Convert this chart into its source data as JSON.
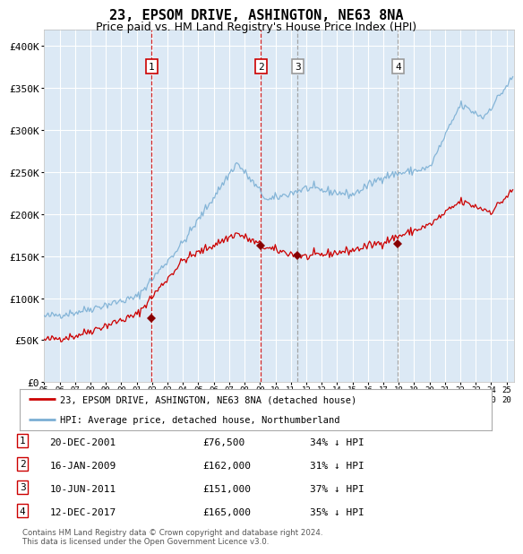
{
  "title": "23, EPSOM DRIVE, ASHINGTON, NE63 8NA",
  "subtitle": "Price paid vs. HM Land Registry's House Price Index (HPI)",
  "title_fontsize": 11,
  "subtitle_fontsize": 9,
  "background_color": "#ffffff",
  "plot_bg_color": "#dce9f5",
  "grid_color": "#ffffff",
  "sales": [
    {
      "label": "1",
      "date_num": 2001.97,
      "price": 76500,
      "line_color": "#cc0000",
      "box_color": "#cc0000"
    },
    {
      "label": "2",
      "date_num": 2009.05,
      "price": 162000,
      "line_color": "#cc0000",
      "box_color": "#cc0000"
    },
    {
      "label": "3",
      "date_num": 2011.44,
      "price": 151000,
      "line_color": "#999999",
      "box_color": "#999999"
    },
    {
      "label": "4",
      "date_num": 2017.95,
      "price": 165000,
      "line_color": "#999999",
      "box_color": "#999999"
    }
  ],
  "sale_marker_color": "#880000",
  "legend_items": [
    {
      "label": "23, EPSOM DRIVE, ASHINGTON, NE63 8NA (detached house)",
      "color": "#cc0000"
    },
    {
      "label": "HPI: Average price, detached house, Northumberland",
      "color": "#7bafd4"
    }
  ],
  "table_rows": [
    {
      "num": "1",
      "date": "20-DEC-2001",
      "price": "£76,500",
      "pct": "34% ↓ HPI"
    },
    {
      "num": "2",
      "date": "16-JAN-2009",
      "price": "£162,000",
      "pct": "31% ↓ HPI"
    },
    {
      "num": "3",
      "date": "10-JUN-2011",
      "price": "£151,000",
      "pct": "37% ↓ HPI"
    },
    {
      "num": "4",
      "date": "12-DEC-2017",
      "price": "£165,000",
      "pct": "35% ↓ HPI"
    }
  ],
  "footer": "Contains HM Land Registry data © Crown copyright and database right 2024.\nThis data is licensed under the Open Government Licence v3.0.",
  "ylim": [
    0,
    420000
  ],
  "xlim": [
    1995.0,
    2025.5
  ],
  "yticks": [
    0,
    50000,
    100000,
    150000,
    200000,
    250000,
    300000,
    350000,
    400000
  ],
  "ytick_labels": [
    "£0",
    "£50K",
    "£100K",
    "£150K",
    "£200K",
    "£250K",
    "£300K",
    "£350K",
    "£400K"
  ],
  "xtick_years": [
    1995,
    1996,
    1997,
    1998,
    1999,
    2000,
    2001,
    2002,
    2003,
    2004,
    2005,
    2006,
    2007,
    2008,
    2009,
    2010,
    2011,
    2012,
    2013,
    2014,
    2015,
    2016,
    2017,
    2018,
    2019,
    2020,
    2021,
    2022,
    2023,
    2024,
    2025
  ]
}
